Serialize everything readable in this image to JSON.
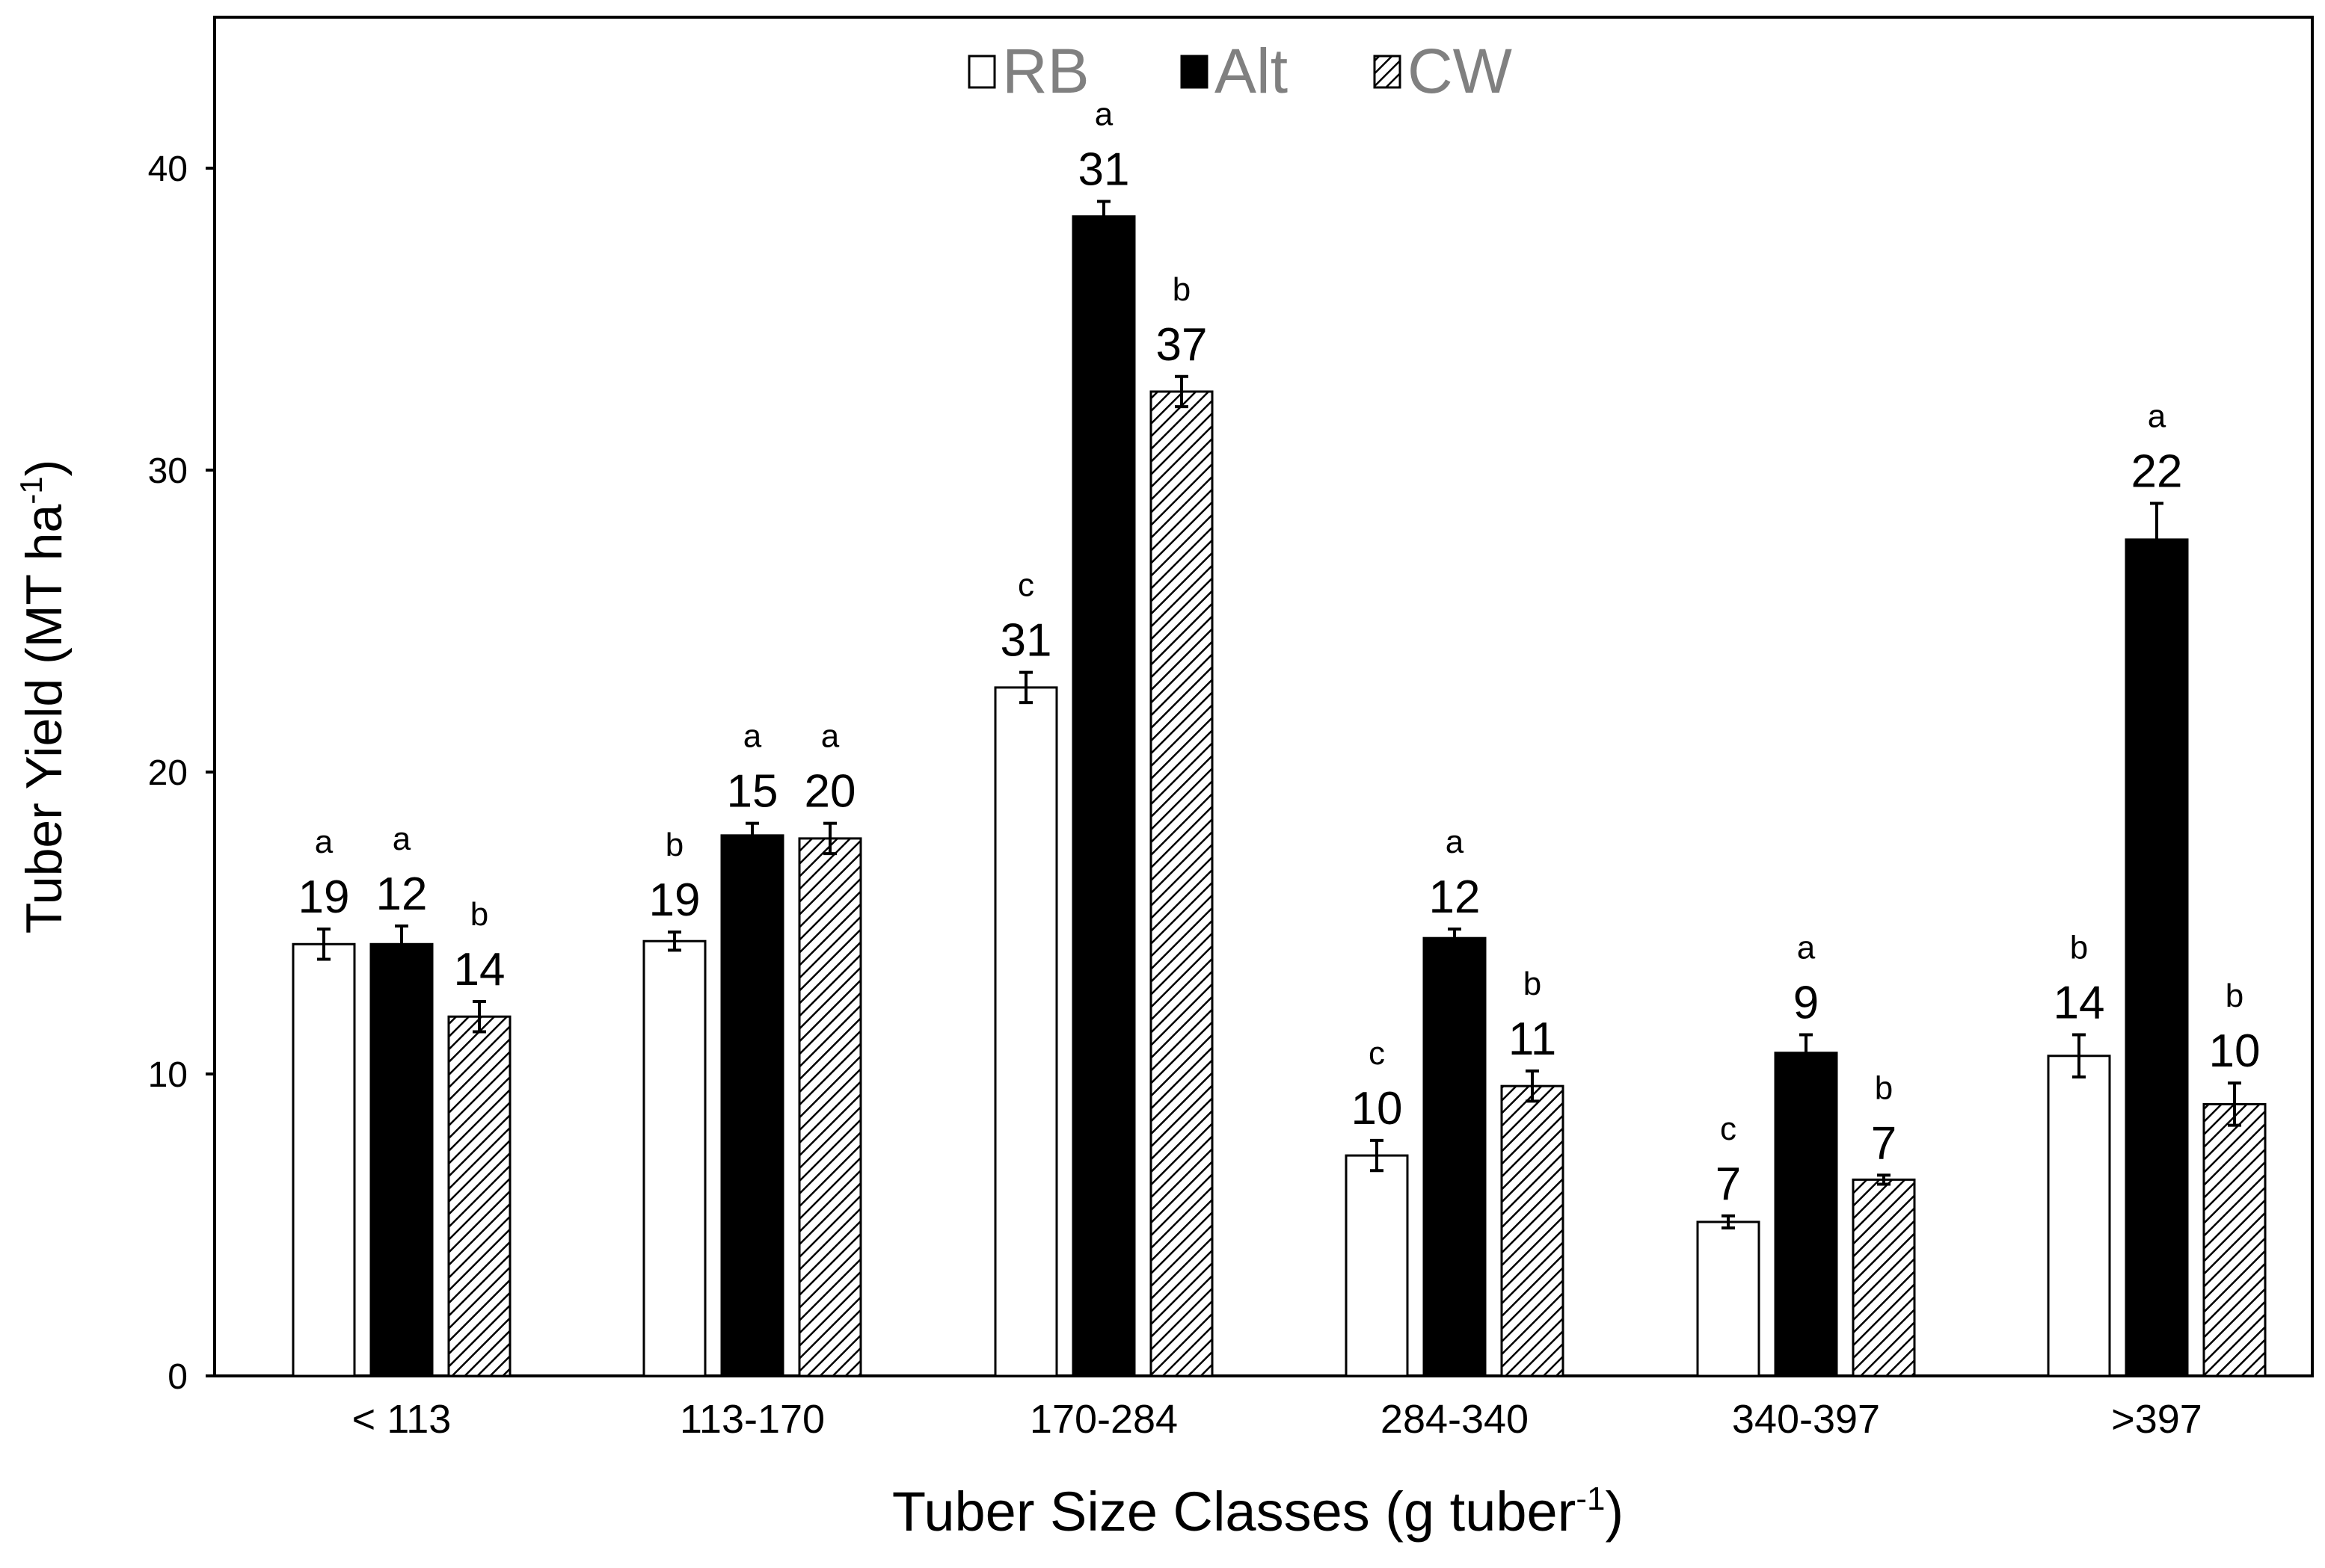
{
  "chart_data": {
    "type": "bar",
    "title": "",
    "xlabel": "Tuber Size Classes (g tuber",
    "xlabel_sup": "-1",
    "xlabel_end": ")",
    "ylabel": "Tuber Yield (MT ha",
    "ylabel_sup": "-1",
    "ylabel_end": ")",
    "ylim": [
      0,
      45
    ],
    "yticks": [
      0,
      10,
      20,
      30,
      40
    ],
    "categories": [
      "< 113",
      "113-170",
      "170-284",
      "284-340",
      "340-397",
      ">397"
    ],
    "legend_position": "top-center",
    "series": [
      {
        "name": "RB",
        "style": "open",
        "values": [
          14.3,
          14.4,
          22.8,
          7.3,
          5.1,
          10.6
        ],
        "errors": [
          0.5,
          0.3,
          0.5,
          0.5,
          0.2,
          0.7
        ],
        "counts": [
          "19",
          "19",
          "31",
          "10",
          "7",
          "14"
        ],
        "letters": [
          "a",
          "b",
          "c",
          "c",
          "c",
          "b"
        ]
      },
      {
        "name": "Alt",
        "style": "solid",
        "values": [
          14.3,
          17.9,
          38.4,
          14.5,
          10.7,
          27.7
        ],
        "errors": [
          0.6,
          0.4,
          0.5,
          0.3,
          0.6,
          1.2
        ],
        "counts": [
          "12",
          "15",
          "31",
          "12",
          "9",
          "22"
        ],
        "letters": [
          "a",
          "a",
          "a",
          "a",
          "a",
          "a"
        ]
      },
      {
        "name": "CW",
        "style": "hatched",
        "values": [
          11.9,
          17.8,
          32.6,
          9.6,
          6.5,
          9.0
        ],
        "errors": [
          0.5,
          0.5,
          0.5,
          0.5,
          0.15,
          0.7
        ],
        "counts": [
          "14",
          "20",
          "37",
          "11",
          "7",
          "10"
        ],
        "letters": [
          "b",
          "a",
          "b",
          "b",
          "b",
          "b"
        ]
      }
    ],
    "colors": {
      "open": "#ffffff",
      "solid": "#000000",
      "axis": "#000000",
      "legend_text": "#808080"
    }
  }
}
